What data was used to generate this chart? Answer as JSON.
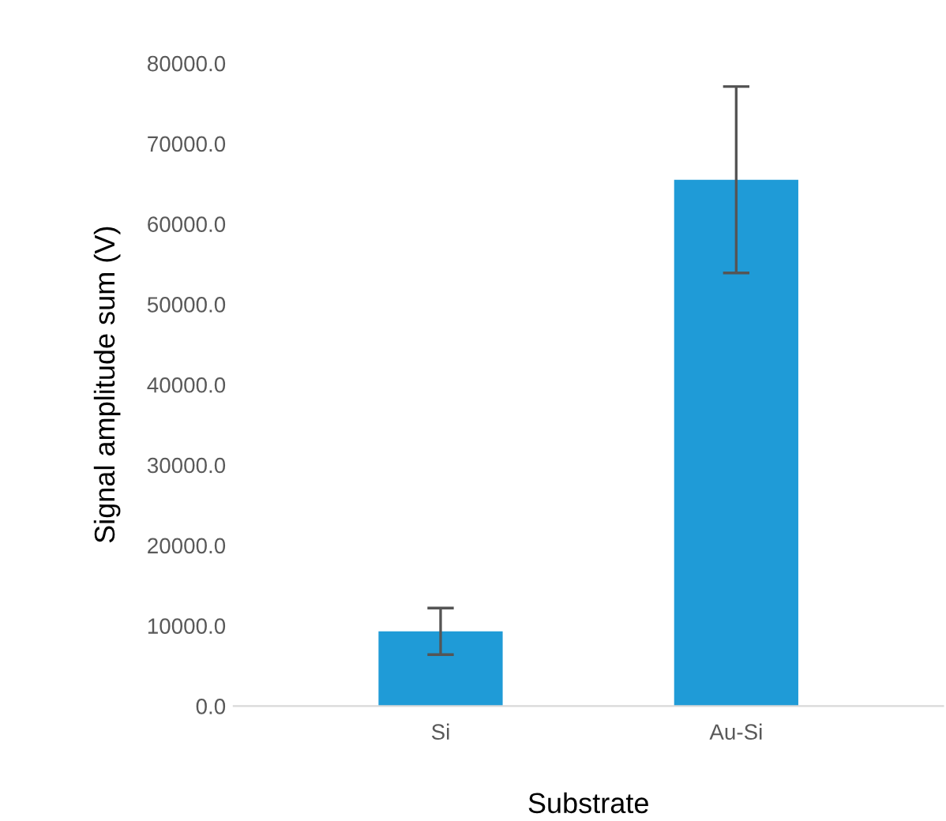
{
  "chart_data": {
    "type": "bar",
    "xlabel": "Substrate",
    "ylabel": "Signal amplitude sum (V)",
    "categories": [
      "Si",
      "Au-Si"
    ],
    "values": [
      9300,
      65500
    ],
    "errors": [
      2900,
      11600
    ],
    "color": "#1f9bd7",
    "ylim": [
      0,
      80000
    ],
    "yticks": [
      {
        "value": 0,
        "label": "0.0"
      },
      {
        "value": 10000,
        "label": "10000.0"
      },
      {
        "value": 20000,
        "label": "20000.0"
      },
      {
        "value": 30000,
        "label": "30000.0"
      },
      {
        "value": 40000,
        "label": "40000.0"
      },
      {
        "value": 50000,
        "label": "50000.0"
      },
      {
        "value": 60000,
        "label": "60000.0"
      },
      {
        "value": 70000,
        "label": "70000.0"
      },
      {
        "value": 80000,
        "label": "80000.0"
      }
    ],
    "grid": false,
    "legend": false
  }
}
